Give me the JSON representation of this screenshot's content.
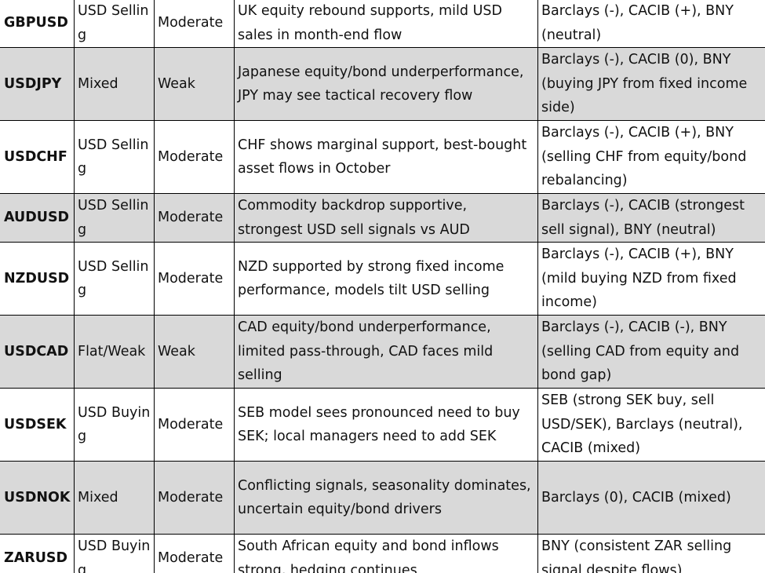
{
  "table": {
    "rows": [
      [
        "GBPUSD",
        "USD Selling",
        "Moderate",
        "UK equity rebound supports, mild USD sales in month-end flow",
        "Barclays (-), CACIB (+), BNY (neutral)"
      ],
      [
        "USDJPY",
        "Mixed",
        "Weak",
        "Japanese equity/bond underperformance, JPY may see tactical recovery flow",
        "Barclays (-), CACIB (0), BNY (buying JPY from fixed income side)"
      ],
      [
        "USDCHF",
        "USD Selling",
        "Moderate",
        "CHF shows marginal support, best-bought asset flows in October",
        "Barclays (-), CACIB (+), BNY (selling CHF from equity/bond rebalancing)"
      ],
      [
        "AUDUSD",
        "USD Selling",
        "Moderate",
        "Commodity backdrop supportive, strongest USD sell signals vs AUD",
        "Barclays (-), CACIB (strongest sell signal), BNY (neutral)"
      ],
      [
        "NZDUSD",
        "USD Selling",
        "Moderate",
        "NZD supported by strong fixed income performance, models tilt USD selling",
        "Barclays (-), CACIB (+), BNY (mild buying NZD from fixed income)"
      ],
      [
        "USDCAD",
        "Flat/Weak",
        "Weak",
        "CAD equity/bond underperformance, limited pass-through, CAD faces mild selling",
        "Barclays (-), CACIB (-), BNY (selling CAD from equity and bond gap)"
      ],
      [
        "USDSEK",
        "USD Buying",
        "Moderate",
        "SEB model sees pronounced need to buy SEK; local managers need to add SEK",
        "SEB (strong SEK buy, sell USD/SEK), Barclays (neutral), CACIB (mixed)"
      ],
      [
        "USDNOK",
        "Mixed",
        "Moderate",
        "Conflicting signals, seasonality dominates, uncertain equity/bond drivers",
        "Barclays (0), CACIB (mixed)"
      ],
      [
        "ZARUSD",
        "USD Buying",
        "Moderate",
        "South African equity and bond inflows strong, hedging continues",
        "BNY (consistent ZAR selling signal despite flows)"
      ]
    ]
  }
}
